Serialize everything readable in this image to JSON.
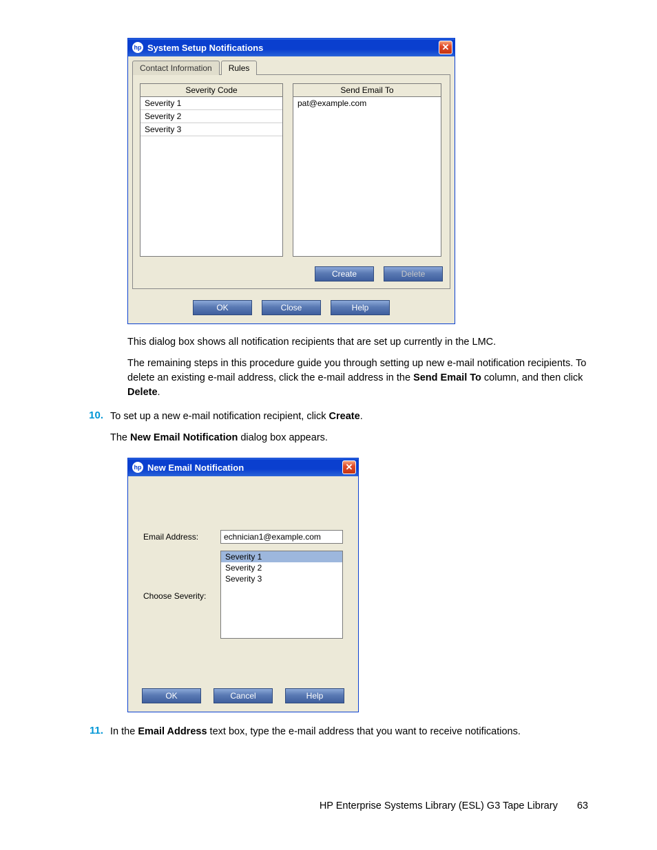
{
  "dialog1": {
    "title": "System Setup Notifications",
    "tabs": [
      "Contact Information",
      "Rules"
    ],
    "active_tab_index": 1,
    "severity_header": "Severity Code",
    "severity_items": [
      "Severity 1",
      "Severity 2",
      "Severity 3"
    ],
    "email_header": "Send Email To",
    "email_items": [
      "pat@example.com"
    ],
    "buttons": {
      "create": "Create",
      "delete": "Delete",
      "ok": "OK",
      "close": "Close",
      "help": "Help"
    }
  },
  "body_text": {
    "p1": "This dialog box shows all notification recipients that are set up currently in the LMC.",
    "p2a": "The remaining steps in this procedure guide you through setting up new e-mail notification recipients. To delete an existing e-mail address, click the e-mail address in the ",
    "p2b": "Send Email To",
    "p2c": " column, and then click ",
    "p2d": "Delete",
    "p2e": "."
  },
  "step10": {
    "num": "10.",
    "line1a": "To set up a new e-mail notification recipient, click ",
    "line1b": "Create",
    "line1c": ".",
    "line2a": "The ",
    "line2b": "New Email Notification",
    "line2c": " dialog box appears."
  },
  "dialog2": {
    "title": "New Email Notification",
    "email_label": "Email Address:",
    "email_value": "echnician1@example.com",
    "severity_label": "Choose Severity:",
    "severity_items": [
      "Severity 1",
      "Severity 2",
      "Severity 3"
    ],
    "selected_index": 0,
    "buttons": {
      "ok": "OK",
      "cancel": "Cancel",
      "help": "Help"
    }
  },
  "step11": {
    "num": "11.",
    "a": "In the ",
    "b": "Email Address",
    "c": " text box, type the e-mail address that you want to receive notifications."
  },
  "footer": {
    "text": "HP Enterprise Systems Library (ESL) G3 Tape Library",
    "page": "63"
  }
}
